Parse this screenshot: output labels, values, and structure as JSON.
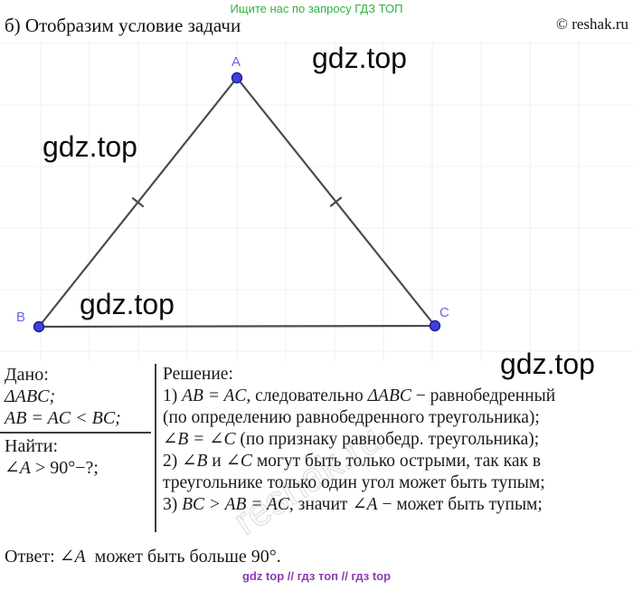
{
  "page": {
    "promo": "Ищите нас по запросу ГДЗ ТОП",
    "heading": "б) Отобразим условие задачи",
    "copyright": "© reshak.ru",
    "watermark": "gdz.top",
    "diagonal_watermark": "reshak.ru",
    "footer": "gdz top  //  гдз топ  //  гдз top"
  },
  "colors": {
    "promo_green": "#2eb33e",
    "footer_purple": "#8d3ab5",
    "point_blue_fill": "#4040d8",
    "point_blue_border": "#1c1c9e",
    "point_label_blue": "#6666e6",
    "line_gray": "#4b4b4b"
  },
  "figure": {
    "point_a_label": "A",
    "point_b_label": "B",
    "point_c_label": "C"
  },
  "dano": {
    "title": "Дано:",
    "lines": [
      [
        {
          "text": "ΔABC;",
          "math": true
        }
      ],
      [
        {
          "text": "AB = AC < BC;",
          "math": true
        }
      ]
    ],
    "find_title": "Найти:",
    "find_line": [
      {
        "text": "∠A",
        "math": true
      },
      {
        "text": " > 90°−?;",
        "math": false
      }
    ]
  },
  "solution": {
    "title": "Решение:",
    "lines": [
      [
        {
          "text": "1) ",
          "math": false
        },
        {
          "text": "AB = AC",
          "math": true
        },
        {
          "text": ", следовательно ",
          "math": false
        },
        {
          "text": "ΔABC",
          "math": true
        },
        {
          "text": " − равнобедренный",
          "math": false
        }
      ],
      [
        {
          "text": "(по определению равнобедренного треугольника);",
          "math": false
        }
      ],
      [
        {
          "text": "∠B = ∠C",
          "math": true
        },
        {
          "text": " (по признаку равнобедр. треугольника);",
          "math": false
        }
      ],
      [
        {
          "text": "2) ",
          "math": false
        },
        {
          "text": "∠B",
          "math": true
        },
        {
          "text": " и ",
          "math": false
        },
        {
          "text": "∠C",
          "math": true
        },
        {
          "text": " могут быть только острыми, так как в",
          "math": false
        }
      ],
      [
        {
          "text": "треугольнике только один угол может быть тупым;",
          "math": false
        }
      ],
      [
        {
          "text": "3) ",
          "math": false
        },
        {
          "text": "BC > AB = AC",
          "math": true
        },
        {
          "text": ", значит ",
          "math": false
        },
        {
          "text": "∠A",
          "math": true
        },
        {
          "text": " − может быть тупым;",
          "math": false
        }
      ]
    ]
  },
  "answer": [
    {
      "text": "Ответ: ",
      "math": false
    },
    {
      "text": "∠A",
      "math": true
    },
    {
      "text": "  может быть больше 90°.",
      "math": false
    }
  ]
}
